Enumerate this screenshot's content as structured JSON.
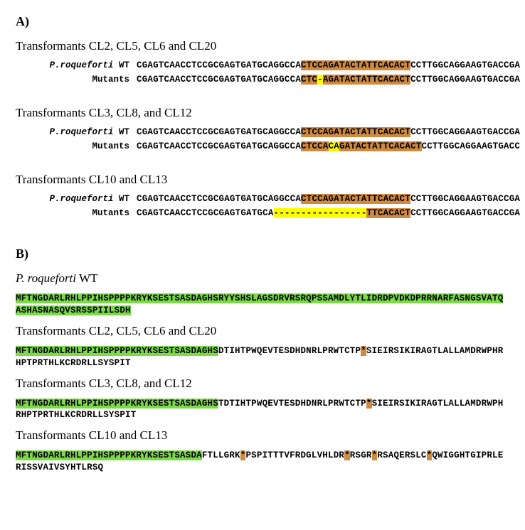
{
  "panelA": {
    "label": "A)",
    "groups": [
      {
        "title": "Transformants CL2, CL5, CL6 and CL20",
        "wt": {
          "label_html": "<span class='italic'>P.roqueforti</span> WT",
          "parts": [
            {
              "t": "CGAGTCAACCTCCGCGAGTGATGCAGGCCA",
              "c": null
            },
            {
              "t": "CTCCAGATACTATTCACACT",
              "c": "orange"
            },
            {
              "t": "CCTTGGCAGGAAGTGACCGA",
              "c": null
            }
          ]
        },
        "mut": {
          "label_html": "Mutants",
          "parts": [
            {
              "t": "CGAGTCAACCTCCGCGAGTGATGCAGGCCA",
              "c": null
            },
            {
              "t": "CTC",
              "c": "orange"
            },
            {
              "t": "-",
              "c": "yellow"
            },
            {
              "t": "AGATACTATTCACACT",
              "c": "orange"
            },
            {
              "t": "CCTTGGCAGGAAGTGACCGA",
              "c": null
            }
          ]
        }
      },
      {
        "title": "Transformants CL3, CL8, and CL12",
        "wt": {
          "label_html": "<span class='italic'>P.roqueforti</span> WT",
          "parts": [
            {
              "t": "CGAGTCAACCTCCGCGAGTGATGCAGGCCA",
              "c": null
            },
            {
              "t": "CTCCAGATACTATTCACACT",
              "c": "orange"
            },
            {
              "t": "CCTTGGCAGGAAGTGACCGA",
              "c": null
            }
          ]
        },
        "mut": {
          "label_html": "Mutants",
          "parts": [
            {
              "t": "CGAGTCAACCTCCGCGAGTGATGCAGGCCA",
              "c": null
            },
            {
              "t": "CTCCA",
              "c": "orange"
            },
            {
              "t": "CA",
              "c": "yellow"
            },
            {
              "t": "GATACTATTCACACT",
              "c": "orange"
            },
            {
              "t": "CCTTGGCAGGAAGTGACC",
              "c": null
            }
          ]
        }
      },
      {
        "title": "Transformants CL10 and CL13",
        "wt": {
          "label_html": "<span class='italic'>P.roqueforti</span> WT",
          "parts": [
            {
              "t": "CGAGTCAACCTCCGCGAGTGATGCAGGCCA",
              "c": null
            },
            {
              "t": "CTCCAGATACTATTCACACT",
              "c": "orange"
            },
            {
              "t": "CCTTGGCAGGAAGTGACCGA",
              "c": null
            }
          ]
        },
        "mut": {
          "label_html": "Mutants",
          "parts": [
            {
              "t": "CGAGTCAACCTCCGCGAGTGATGCA",
              "c": null
            },
            {
              "t": "-----------------",
              "c": "yellow"
            },
            {
              "t": "TTCACACT",
              "c": "orange"
            },
            {
              "t": "CCTTGGCAGGAAGTGACCGA",
              "c": null
            }
          ]
        }
      }
    ]
  },
  "panelB": {
    "label": "B)",
    "entries": [
      {
        "title_html": "<span class='italic'>P. roqueforti</span> WT",
        "parts": [
          {
            "t": "MFTNGDARLRHLPPIHSPPPPKRYKSESTSASDAGHSRYYSHSLAGSDRVRSRQPSSAMDLYTLIDRDPVDKDPRRNARFASNGSVATQASHASNASQVSRSSPIILSDH",
            "c": "green"
          }
        ]
      },
      {
        "title_html": "Transformants CL2, CL5, CL6 and CL20",
        "parts": [
          {
            "t": "MFTNGDARLRHLPPIHSPPPPKRYKSESTSASDAGHS",
            "c": "green"
          },
          {
            "t": "DTIHTPWQEVTESDHDNRLPRWTCTP",
            "c": null
          },
          {
            "t": "*",
            "c": "orange"
          },
          {
            "t": "SIEIRSIKIRAGTLALLAMDRWPHRHPTPRTHLKCRDRLLSYSPIT",
            "c": null
          }
        ]
      },
      {
        "title_html": "Transformants CL3, CL8, and CL12",
        "parts": [
          {
            "t": "MFTNGDARLRHLPPIHSPPPPKRYKSESTSASDAGHS",
            "c": "green"
          },
          {
            "t": "TDTIHTPWQEVTESDHDNRLPRWTCTP",
            "c": null
          },
          {
            "t": "*",
            "c": "orange"
          },
          {
            "t": "SIEIRSIKIRAGTLALLAMDRWPHRHPTPRTHLKCRDRLLSYSPIT",
            "c": null
          }
        ]
      },
      {
        "title_html": "Transformants CL10 and CL13",
        "parts": [
          {
            "t": "MFTNGDARLRHLPPIHSPPPPKRYKSESTSASDA",
            "c": "green"
          },
          {
            "t": "FTLLGRK",
            "c": null
          },
          {
            "t": "*",
            "c": "orange"
          },
          {
            "t": "PSPITTTVFRDGLVHLDR",
            "c": null
          },
          {
            "t": "*",
            "c": "orange"
          },
          {
            "t": "RSGR",
            "c": null
          },
          {
            "t": "*",
            "c": "orange"
          },
          {
            "t": "RSAQERSLC",
            "c": null
          },
          {
            "t": "*",
            "c": "orange"
          },
          {
            "t": "QWIGGHTGIPRLERISSVAIVSYHTLRSQ",
            "c": null
          }
        ]
      }
    ]
  },
  "colors": {
    "orange": "#d08a40",
    "yellow": "#ffff00",
    "green": "#7cd94a",
    "bg": "#ffffff",
    "text": "#000000"
  }
}
